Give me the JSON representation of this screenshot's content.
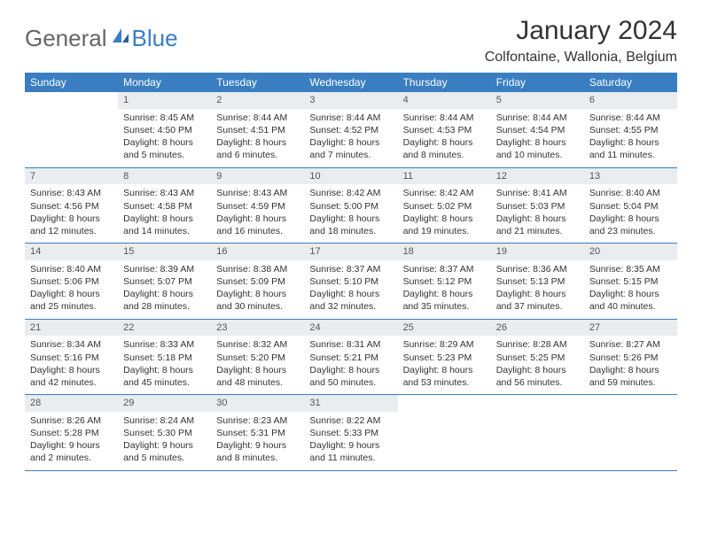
{
  "logo": {
    "text1": "General",
    "text2": "Blue"
  },
  "header": {
    "title": "January 2024",
    "location": "Colfontaine, Wallonia, Belgium"
  },
  "colors": {
    "brand": "#3a7ec1",
    "dayHeaderBg": "#e9edf0",
    "text": "#333333",
    "logoGray": "#666666"
  },
  "weekdays": [
    "Sunday",
    "Monday",
    "Tuesday",
    "Wednesday",
    "Thursday",
    "Friday",
    "Saturday"
  ],
  "calendar": {
    "firstWeekday": 1,
    "daysInMonth": 31,
    "days": [
      {
        "n": 1,
        "sunrise": "8:45 AM",
        "sunset": "4:50 PM",
        "daylight": "8 hours and 5 minutes."
      },
      {
        "n": 2,
        "sunrise": "8:44 AM",
        "sunset": "4:51 PM",
        "daylight": "8 hours and 6 minutes."
      },
      {
        "n": 3,
        "sunrise": "8:44 AM",
        "sunset": "4:52 PM",
        "daylight": "8 hours and 7 minutes."
      },
      {
        "n": 4,
        "sunrise": "8:44 AM",
        "sunset": "4:53 PM",
        "daylight": "8 hours and 8 minutes."
      },
      {
        "n": 5,
        "sunrise": "8:44 AM",
        "sunset": "4:54 PM",
        "daylight": "8 hours and 10 minutes."
      },
      {
        "n": 6,
        "sunrise": "8:44 AM",
        "sunset": "4:55 PM",
        "daylight": "8 hours and 11 minutes."
      },
      {
        "n": 7,
        "sunrise": "8:43 AM",
        "sunset": "4:56 PM",
        "daylight": "8 hours and 12 minutes."
      },
      {
        "n": 8,
        "sunrise": "8:43 AM",
        "sunset": "4:58 PM",
        "daylight": "8 hours and 14 minutes."
      },
      {
        "n": 9,
        "sunrise": "8:43 AM",
        "sunset": "4:59 PM",
        "daylight": "8 hours and 16 minutes."
      },
      {
        "n": 10,
        "sunrise": "8:42 AM",
        "sunset": "5:00 PM",
        "daylight": "8 hours and 18 minutes."
      },
      {
        "n": 11,
        "sunrise": "8:42 AM",
        "sunset": "5:02 PM",
        "daylight": "8 hours and 19 minutes."
      },
      {
        "n": 12,
        "sunrise": "8:41 AM",
        "sunset": "5:03 PM",
        "daylight": "8 hours and 21 minutes."
      },
      {
        "n": 13,
        "sunrise": "8:40 AM",
        "sunset": "5:04 PM",
        "daylight": "8 hours and 23 minutes."
      },
      {
        "n": 14,
        "sunrise": "8:40 AM",
        "sunset": "5:06 PM",
        "daylight": "8 hours and 25 minutes."
      },
      {
        "n": 15,
        "sunrise": "8:39 AM",
        "sunset": "5:07 PM",
        "daylight": "8 hours and 28 minutes."
      },
      {
        "n": 16,
        "sunrise": "8:38 AM",
        "sunset": "5:09 PM",
        "daylight": "8 hours and 30 minutes."
      },
      {
        "n": 17,
        "sunrise": "8:37 AM",
        "sunset": "5:10 PM",
        "daylight": "8 hours and 32 minutes."
      },
      {
        "n": 18,
        "sunrise": "8:37 AM",
        "sunset": "5:12 PM",
        "daylight": "8 hours and 35 minutes."
      },
      {
        "n": 19,
        "sunrise": "8:36 AM",
        "sunset": "5:13 PM",
        "daylight": "8 hours and 37 minutes."
      },
      {
        "n": 20,
        "sunrise": "8:35 AM",
        "sunset": "5:15 PM",
        "daylight": "8 hours and 40 minutes."
      },
      {
        "n": 21,
        "sunrise": "8:34 AM",
        "sunset": "5:16 PM",
        "daylight": "8 hours and 42 minutes."
      },
      {
        "n": 22,
        "sunrise": "8:33 AM",
        "sunset": "5:18 PM",
        "daylight": "8 hours and 45 minutes."
      },
      {
        "n": 23,
        "sunrise": "8:32 AM",
        "sunset": "5:20 PM",
        "daylight": "8 hours and 48 minutes."
      },
      {
        "n": 24,
        "sunrise": "8:31 AM",
        "sunset": "5:21 PM",
        "daylight": "8 hours and 50 minutes."
      },
      {
        "n": 25,
        "sunrise": "8:29 AM",
        "sunset": "5:23 PM",
        "daylight": "8 hours and 53 minutes."
      },
      {
        "n": 26,
        "sunrise": "8:28 AM",
        "sunset": "5:25 PM",
        "daylight": "8 hours and 56 minutes."
      },
      {
        "n": 27,
        "sunrise": "8:27 AM",
        "sunset": "5:26 PM",
        "daylight": "8 hours and 59 minutes."
      },
      {
        "n": 28,
        "sunrise": "8:26 AM",
        "sunset": "5:28 PM",
        "daylight": "9 hours and 2 minutes."
      },
      {
        "n": 29,
        "sunrise": "8:24 AM",
        "sunset": "5:30 PM",
        "daylight": "9 hours and 5 minutes."
      },
      {
        "n": 30,
        "sunrise": "8:23 AM",
        "sunset": "5:31 PM",
        "daylight": "9 hours and 8 minutes."
      },
      {
        "n": 31,
        "sunrise": "8:22 AM",
        "sunset": "5:33 PM",
        "daylight": "9 hours and 11 minutes."
      }
    ]
  },
  "labels": {
    "sunrise": "Sunrise:",
    "sunset": "Sunset:",
    "daylight": "Daylight:"
  }
}
